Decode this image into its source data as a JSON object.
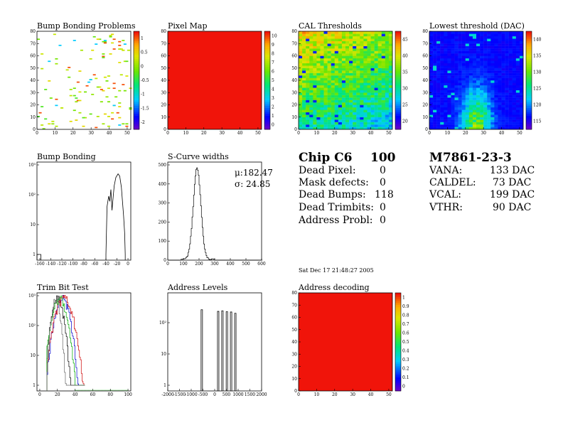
{
  "panels": [
    {
      "id": "bump-problems",
      "title": "Bump Bonding Problems",
      "xticks": [
        "0",
        "10",
        "20",
        "30",
        "40",
        "50"
      ],
      "yticks": [
        "0",
        "10",
        "20",
        "30",
        "40",
        "50",
        "60",
        "70",
        "80"
      ],
      "zticks": [
        "-2",
        "-1.5",
        "-1",
        "-0.5",
        "0",
        "0.5",
        "1"
      ]
    },
    {
      "id": "pixel-map",
      "title": "Pixel Map",
      "xticks": [
        "0",
        "10",
        "20",
        "30",
        "40",
        "50"
      ],
      "yticks": [
        "0",
        "10",
        "20",
        "30",
        "40",
        "50",
        "60",
        "70",
        "80"
      ],
      "zticks": [
        "0",
        "1",
        "2",
        "3",
        "4",
        "5",
        "6",
        "7",
        "8",
        "9",
        "10"
      ]
    },
    {
      "id": "cal-thresholds",
      "title": "CAL Thresholds",
      "xticks": [
        "0",
        "10",
        "20",
        "30",
        "40",
        "50"
      ],
      "yticks": [
        "0",
        "10",
        "20",
        "30",
        "40",
        "50",
        "60",
        "70",
        "80"
      ],
      "zticks": [
        "20",
        "25",
        "30",
        "35",
        "40",
        "45"
      ]
    },
    {
      "id": "lowest-threshold",
      "title": "Lowest threshold (DAC)",
      "xticks": [
        "0",
        "10",
        "20",
        "30",
        "40",
        "50"
      ],
      "yticks": [
        "0",
        "10",
        "20",
        "30",
        "40",
        "50",
        "60",
        "70",
        "80"
      ],
      "zticks": [
        "115",
        "120",
        "125",
        "130",
        "135",
        "140"
      ]
    },
    {
      "id": "bump-bonding",
      "title": "Bump Bonding",
      "xticks": [
        "-160",
        "-140",
        "-120",
        "-100",
        "-80",
        "-60",
        "-40",
        "-20",
        "0"
      ],
      "yticks": [
        "1",
        "10",
        "10²",
        "10³"
      ]
    },
    {
      "id": "scurve-widths",
      "title": "S-Curve widths",
      "xticks": [
        "0",
        "100",
        "200",
        "300",
        "400",
        "500",
        "600"
      ],
      "yticks": [
        "0",
        "100",
        "200",
        "300",
        "400",
        "500"
      ],
      "stats": {
        "mu": "μ:182.47",
        "sigma": "σ: 24.85"
      }
    },
    {
      "id": "trim-bit-test",
      "title": "Trim Bit Test",
      "xticks": [
        "0",
        "20",
        "40",
        "60",
        "80",
        "100"
      ],
      "yticks": [
        "1",
        "10",
        "10²",
        "10³"
      ]
    },
    {
      "id": "address-levels",
      "title": "Address Levels",
      "xticks": [
        "-2000",
        "-1500",
        "-1000",
        "-500",
        "0",
        "500",
        "1000",
        "1500",
        "2000"
      ],
      "yticks": [
        "1",
        "10",
        "10²"
      ]
    },
    {
      "id": "address-decoding",
      "title": "Address decoding",
      "xticks": [
        "0",
        "10",
        "20",
        "30",
        "40",
        "50"
      ],
      "yticks": [
        "0",
        "10",
        "20",
        "30",
        "40",
        "50",
        "60",
        "70",
        "80"
      ],
      "zticks": [
        "0",
        "0.1",
        "0.2",
        "0.3",
        "0.4",
        "0.5",
        "0.6",
        "0.7",
        "0.8",
        "0.9",
        "1"
      ]
    }
  ],
  "summary": {
    "chip_label": "Chip C6",
    "chip_value": "100",
    "rows": [
      {
        "label": "Dead Pixel:",
        "value": "0"
      },
      {
        "label": "Mask defects:",
        "value": "0"
      },
      {
        "label": "Dead Bumps:",
        "value": "118"
      },
      {
        "label": "Dead Trimbits:",
        "value": "0"
      },
      {
        "label": "Address Probl:",
        "value": "0"
      }
    ],
    "module": "M7861-23-3",
    "dacs": [
      {
        "label": "VANA:",
        "value": "133 DAC"
      },
      {
        "label": "CALDEL:",
        "value": "73 DAC"
      },
      {
        "label": "VCAL:",
        "value": "199 DAC"
      },
      {
        "label": "VTHR:",
        "value": "90 DAC"
      }
    ],
    "date": "Sat Dec 17 21:48:27 2005"
  },
  "chart_data": [
    {
      "type": "heatmap",
      "title": "Bump Bonding Problems",
      "xlim": [
        0,
        52
      ],
      "ylim": [
        0,
        80
      ],
      "zlim": [
        -2,
        1
      ]
    },
    {
      "type": "heatmap",
      "title": "Pixel Map",
      "xlim": [
        0,
        52
      ],
      "ylim": [
        0,
        80
      ],
      "zlim": [
        0,
        10
      ],
      "fill_value": 10
    },
    {
      "type": "heatmap",
      "title": "CAL Thresholds",
      "xlim": [
        0,
        52
      ],
      "ylim": [
        0,
        80
      ],
      "zlim": [
        17,
        48
      ]
    },
    {
      "type": "heatmap",
      "title": "Lowest threshold (DAC)",
      "xlim": [
        0,
        52
      ],
      "ylim": [
        0,
        80
      ],
      "zlim": [
        112,
        143
      ]
    },
    {
      "type": "line",
      "title": "Bump Bonding",
      "log_y": true,
      "xlim": [
        -170,
        10
      ],
      "ylim": [
        1,
        1000
      ],
      "peak": {
        "x": -18,
        "y": 500
      }
    },
    {
      "type": "line",
      "title": "S-Curve widths",
      "xlim": [
        0,
        600
      ],
      "ylim": [
        0,
        500
      ],
      "peak": {
        "x": 185,
        "y": 480
      }
    },
    {
      "type": "line",
      "title": "Trim Bit Test",
      "log_y": true,
      "xlim": [
        0,
        100
      ],
      "ylim": [
        1,
        1000
      ]
    },
    {
      "type": "line",
      "title": "Address Levels",
      "log_y": true,
      "xlim": [
        -2000,
        2000
      ],
      "ylim": [
        1,
        300
      ],
      "peaks_x": [
        -550,
        150,
        330,
        520,
        700,
        880
      ]
    },
    {
      "type": "heatmap",
      "title": "Address decoding",
      "xlim": [
        0,
        52
      ],
      "ylim": [
        0,
        80
      ],
      "zlim": [
        0,
        1
      ],
      "fill_value": 1
    }
  ]
}
